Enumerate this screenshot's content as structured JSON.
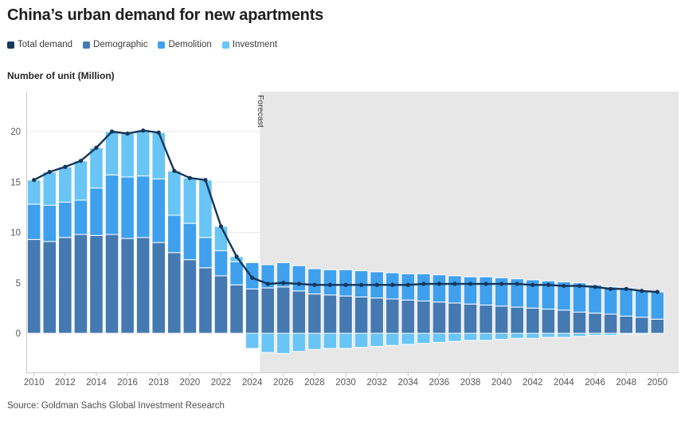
{
  "title": "China’s urban demand for new apartments",
  "axis_title": "Number of unit (Million)",
  "source": "Source: Goldman Sachs Global Investment Research",
  "forecast_label": "Forecast",
  "legend": [
    {
      "label": "Total demand",
      "color": "#17375E"
    },
    {
      "label": "Demographic",
      "color": "#4579B2"
    },
    {
      "label": "Demolition",
      "color": "#3FA0EE"
    },
    {
      "label": "Investment",
      "color": "#68C5F5"
    }
  ],
  "colors": {
    "total_line": "#14365A",
    "demographic": "#4579B2",
    "demolition": "#3FA0EE",
    "investment": "#68C5F5",
    "forecast_band": "#E8E7E7",
    "gridline": "#E9E9E9",
    "axis_line": "#C9C9C9",
    "tick_text": "#575757"
  },
  "chart_data": {
    "type": "bar",
    "subtype": "stacked-bars-with-line",
    "title": "China’s urban demand for new apartments",
    "xlabel": "",
    "ylabel": "Number of unit (Million)",
    "x": [
      2010,
      2011,
      2012,
      2013,
      2014,
      2015,
      2016,
      2017,
      2018,
      2019,
      2020,
      2021,
      2022,
      2023,
      2024,
      2025,
      2026,
      2027,
      2028,
      2029,
      2030,
      2031,
      2032,
      2033,
      2034,
      2035,
      2036,
      2037,
      2038,
      2039,
      2040,
      2041,
      2042,
      2043,
      2044,
      2045,
      2046,
      2047,
      2048,
      2049,
      2050
    ],
    "xticks": [
      2010,
      2012,
      2014,
      2016,
      2018,
      2020,
      2022,
      2024,
      2026,
      2028,
      2030,
      2032,
      2034,
      2036,
      2038,
      2040,
      2042,
      2044,
      2046,
      2048,
      2050
    ],
    "yticks": [
      0,
      5,
      10,
      15,
      20
    ],
    "ylim": [
      -4.1,
      23.9
    ],
    "grid": "horizontal",
    "legend_position": "top",
    "forecast_start": 2025,
    "series": [
      {
        "name": "Demographic",
        "type": "bar",
        "color": "#4579B2",
        "values": [
          9.3,
          9.1,
          9.5,
          9.8,
          9.7,
          9.8,
          9.4,
          9.5,
          9.0,
          8.0,
          7.3,
          6.5,
          5.7,
          4.8,
          4.4,
          4.5,
          4.6,
          4.2,
          3.9,
          3.8,
          3.7,
          3.6,
          3.5,
          3.4,
          3.3,
          3.2,
          3.1,
          3.0,
          2.9,
          2.8,
          2.7,
          2.6,
          2.5,
          2.4,
          2.3,
          2.1,
          2.0,
          1.9,
          1.7,
          1.6,
          1.4
        ]
      },
      {
        "name": "Demolition",
        "type": "bar",
        "color": "#3FA0EE",
        "values": [
          3.5,
          3.6,
          3.5,
          3.4,
          4.7,
          5.9,
          6.1,
          6.1,
          6.3,
          3.7,
          3.6,
          3.0,
          2.5,
          2.3,
          2.6,
          2.3,
          2.4,
          2.5,
          2.5,
          2.5,
          2.6,
          2.6,
          2.6,
          2.6,
          2.6,
          2.7,
          2.7,
          2.7,
          2.7,
          2.8,
          2.8,
          2.8,
          2.8,
          2.8,
          2.8,
          2.9,
          2.8,
          2.7,
          2.8,
          2.7,
          2.7
        ]
      },
      {
        "name": "Investment",
        "type": "bar",
        "color": "#68C5F5",
        "values": [
          2.4,
          3.3,
          3.5,
          3.9,
          4.0,
          4.3,
          4.3,
          4.5,
          4.6,
          4.4,
          4.5,
          5.7,
          2.4,
          0.5,
          -1.5,
          -1.9,
          -2.0,
          -1.8,
          -1.6,
          -1.5,
          -1.5,
          -1.4,
          -1.3,
          -1.2,
          -1.1,
          -1.0,
          -0.9,
          -0.8,
          -0.7,
          -0.7,
          -0.6,
          -0.5,
          -0.5,
          -0.4,
          -0.4,
          -0.3,
          -0.2,
          -0.2,
          -0.1,
          -0.1,
          0.0
        ]
      },
      {
        "name": "Total demand",
        "type": "line",
        "color": "#14365A",
        "values": [
          15.2,
          16.0,
          16.5,
          17.1,
          18.4,
          20.0,
          19.8,
          20.1,
          19.9,
          16.1,
          15.4,
          15.2,
          10.6,
          7.6,
          5.5,
          4.9,
          5.0,
          4.9,
          4.8,
          4.8,
          4.8,
          4.8,
          4.8,
          4.8,
          4.8,
          4.9,
          4.9,
          4.9,
          4.9,
          4.9,
          4.9,
          4.9,
          4.8,
          4.8,
          4.7,
          4.7,
          4.6,
          4.4,
          4.4,
          4.2,
          4.1
        ]
      }
    ]
  }
}
